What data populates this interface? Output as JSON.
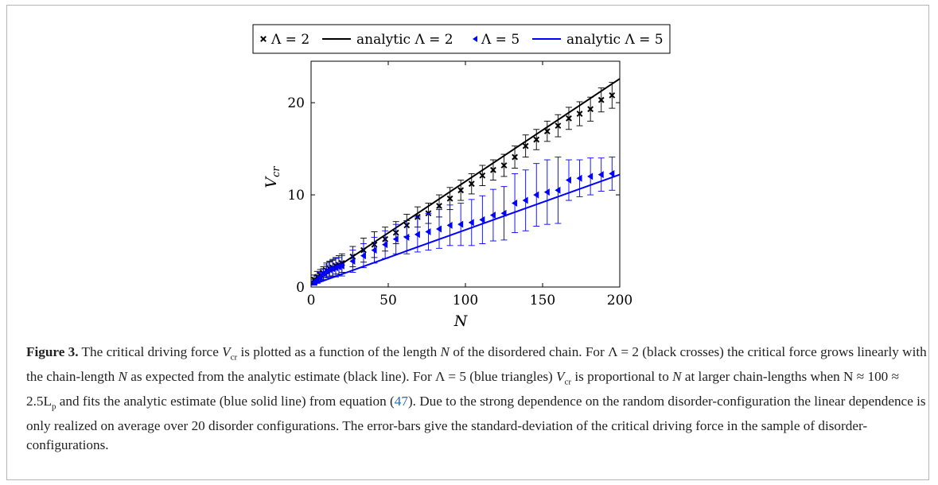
{
  "chart_data": {
    "type": "scatter",
    "xlabel": "N",
    "ylabel": "V_cr",
    "xlim": [
      0,
      200
    ],
    "ylim": [
      0,
      24.5
    ],
    "xticks": [
      0,
      50,
      100,
      150,
      200
    ],
    "yticks": [
      0,
      10,
      20
    ],
    "legend_position": "top-center",
    "series": [
      {
        "name": "Λ = 2",
        "kind": "markers-errorbars",
        "marker": "cross",
        "color": "#000000",
        "x": [
          2,
          4,
          6,
          8,
          10,
          12,
          14,
          16,
          18,
          20,
          27,
          34,
          41,
          48,
          55,
          62,
          69,
          76,
          83,
          90,
          97,
          104,
          111,
          118,
          125,
          132,
          139,
          146,
          153,
          160,
          167,
          174,
          181,
          188,
          195
        ],
        "y": [
          0.8,
          1.1,
          1.3,
          1.5,
          1.8,
          2.0,
          2.1,
          2.3,
          2.4,
          2.6,
          3.3,
          4.0,
          4.6,
          5.2,
          5.9,
          6.7,
          7.6,
          8.0,
          8.8,
          9.6,
          10.5,
          11.2,
          12.1,
          12.7,
          13.2,
          14.1,
          15.3,
          16.0,
          16.9,
          17.5,
          18.3,
          18.8,
          19.3,
          20.3,
          20.8
        ],
        "err": [
          0.5,
          0.6,
          0.6,
          0.7,
          0.8,
          0.8,
          0.9,
          0.9,
          1.0,
          1.0,
          1.1,
          1.3,
          1.4,
          1.3,
          1.2,
          1.2,
          1.1,
          1.1,
          1.2,
          1.2,
          1.1,
          1.1,
          1.1,
          1.1,
          1.2,
          1.2,
          1.2,
          1.1,
          1.1,
          1.2,
          1.2,
          1.3,
          1.3,
          1.3,
          1.4
        ]
      },
      {
        "name": "analytic Λ = 2",
        "kind": "line",
        "color": "#000000",
        "x": [
          0,
          200
        ],
        "y": [
          0.3,
          22.6
        ]
      },
      {
        "name": "Λ = 5",
        "kind": "markers-errorbars",
        "marker": "triangle-left",
        "color": "#0000ff",
        "x": [
          2,
          4,
          6,
          8,
          10,
          12,
          14,
          16,
          18,
          20,
          27,
          34,
          41,
          48,
          55,
          62,
          69,
          76,
          83,
          90,
          97,
          104,
          111,
          118,
          125,
          132,
          139,
          146,
          153,
          160,
          167,
          174,
          181,
          188,
          195
        ],
        "y": [
          0.5,
          0.8,
          1.1,
          1.4,
          1.7,
          1.9,
          2.0,
          2.1,
          2.2,
          2.3,
          2.8,
          3.4,
          4.0,
          4.6,
          5.2,
          5.4,
          5.7,
          6.0,
          6.3,
          6.7,
          6.8,
          7.0,
          7.3,
          7.8,
          8.0,
          9.1,
          9.4,
          10.0,
          10.3,
          10.5,
          11.6,
          11.8,
          12.0,
          12.2,
          12.3
        ],
        "err": [
          0.3,
          0.4,
          0.5,
          0.6,
          0.7,
          0.8,
          0.9,
          1.0,
          1.0,
          1.1,
          1.2,
          1.3,
          1.4,
          1.5,
          1.6,
          1.8,
          1.9,
          2.0,
          2.1,
          2.2,
          2.3,
          2.5,
          2.6,
          2.8,
          2.9,
          3.2,
          3.3,
          3.4,
          3.5,
          3.6,
          2.2,
          2.0,
          2.0,
          1.8,
          1.8
        ]
      },
      {
        "name": "analytic Λ = 5",
        "kind": "line",
        "color": "#0000ff",
        "x": [
          0,
          200
        ],
        "y": [
          0.2,
          12.2
        ]
      }
    ]
  },
  "legend": {
    "entry1": "Λ = 2",
    "entry2": "analytic Λ = 2",
    "entry3": "Λ = 5",
    "entry4": "analytic Λ = 5"
  },
  "caption": {
    "label": "Figure 3.",
    "s1": " The critical driving force ",
    "vcr1": "V",
    "vcr1_sub": "cr",
    "s2": " is plotted as a function of the length  ",
    "n1": "N",
    "s3": " of the disordered chain. For ",
    "lam2": "Λ = 2",
    "s4": " (black crosses) the critical force grows linearly with the chain-length  ",
    "n2": "N",
    "s5": " as expected from the analytic estimate (black line). For ",
    "lam5": "Λ = 5",
    "s6": " (blue triangles) ",
    "vcr2": "V",
    "vcr2_sub": "cr",
    "s7": " is proportional to  ",
    "n3": "N",
    "s8": " at larger chain-lengths when ",
    "approx": "N ≈ 100 ≈ 2.5L",
    "approx_sub": "p",
    "s9": " and fits the analytic estimate (blue solid line) from equation (",
    "eqref": "47",
    "s10": "). Due to the strong dependence on the random disorder-configuration the linear dependence is only realized on average over 20 disorder configurations. The error-bars give the standard-deviation of the critical driving force in the sample of disorder-configurations."
  }
}
